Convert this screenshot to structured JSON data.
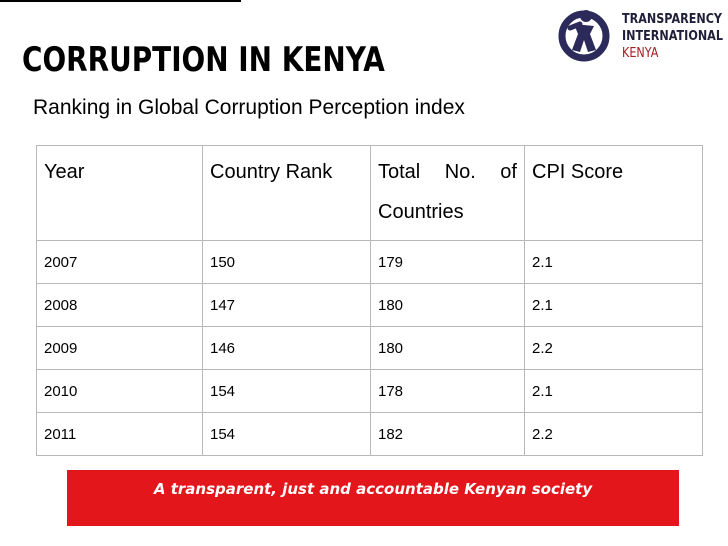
{
  "slide": {
    "title": "CORRUPTION IN KENYA",
    "subtitle": "Ranking in Global Corruption Perception index"
  },
  "logo": {
    "line1": "TRANSPARENCY",
    "line2": "INTERNATIONAL",
    "line3": "KENYA",
    "colors": {
      "brand": "#2b2a5a",
      "kenya": "#a51c22"
    }
  },
  "table": {
    "headers": {
      "year": "Year",
      "rank": "Country Rank",
      "total_line1": "Total No. of",
      "total_line2": "Countries",
      "cpi": "CPI Score"
    },
    "rows": [
      {
        "year": "2007",
        "rank": "150",
        "total": "179",
        "cpi": "2.1"
      },
      {
        "year": "2008",
        "rank": "147",
        "total": "180",
        "cpi": "2.1"
      },
      {
        "year": "2009",
        "rank": "146",
        "total": "180",
        "cpi": "2.2"
      },
      {
        "year": "2010",
        "rank": "154",
        "total": "178",
        "cpi": "2.1"
      },
      {
        "year": "2011",
        "rank": "154",
        "total": "182",
        "cpi": "2.2"
      }
    ]
  },
  "banner": {
    "text": "A transparent, just and accountable Kenyan society",
    "color": "#e3161c"
  }
}
